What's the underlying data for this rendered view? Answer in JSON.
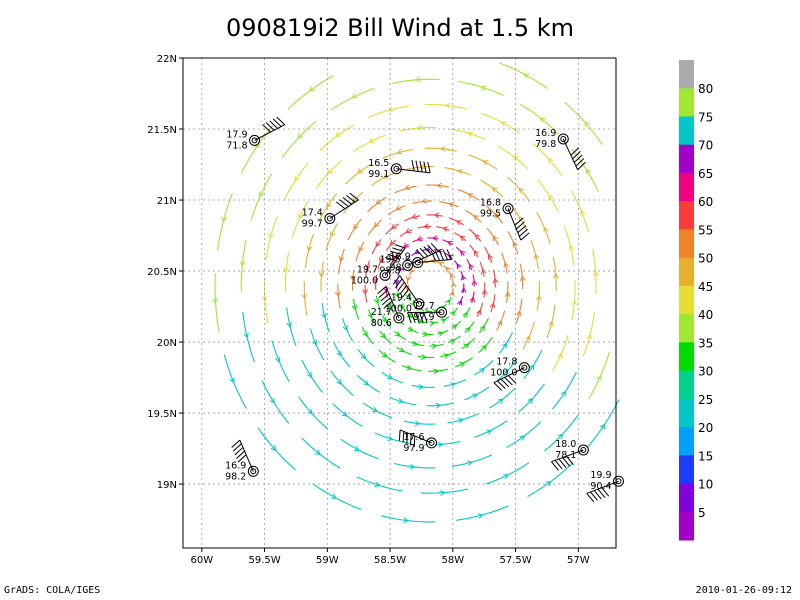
{
  "chart_data": {
    "type": "vector-field",
    "title": "090819i2 Bill Wind at 1.5 km",
    "x_ticks": [
      "60W",
      "59.5W",
      "59W",
      "58.5W",
      "58W",
      "57.5W",
      "57W"
    ],
    "y_ticks": [
      "22N",
      "21.5N",
      "21N",
      "20.5N",
      "20N",
      "19.5N",
      "19N"
    ],
    "xlim": [
      -60.15,
      -56.7
    ],
    "ylim": [
      18.55,
      22.0
    ],
    "grid": true,
    "colorbar": {
      "levels": [
        "5",
        "10",
        "15",
        "20",
        "25",
        "30",
        "35",
        "40",
        "45",
        "50",
        "55",
        "60",
        "65",
        "70",
        "75",
        "80"
      ],
      "colors": [
        "#a000c8",
        "#8200dc",
        "#1e3cff",
        "#00a0ff",
        "#00c8c8",
        "#00d28c",
        "#00dc00",
        "#a0e632",
        "#e6dc32",
        "#e6af2d",
        "#f08228",
        "#fa3c3c",
        "#f00082",
        "#a000c8",
        "#00c8c8",
        "#a0e632",
        "#aaaaaa"
      ]
    },
    "center": {
      "lon": -58.18,
      "lat": 20.52
    },
    "observations": [
      {
        "lon": -59.58,
        "lat": 21.42,
        "t": "17.9",
        "p": "71.8",
        "side": "left"
      },
      {
        "lon": -58.45,
        "lat": 21.22,
        "t": "16.5",
        "p": "99.1",
        "side": "left"
      },
      {
        "lon": -57.12,
        "lat": 21.43,
        "t": "16.9",
        "p": "79.8",
        "side": "left"
      },
      {
        "lon": -58.98,
        "lat": 20.87,
        "t": "17.4",
        "p": "99.7",
        "side": "left"
      },
      {
        "lon": -57.56,
        "lat": 20.94,
        "t": "16.8",
        "p": "99.5",
        "side": "left"
      },
      {
        "lon": -58.28,
        "lat": 20.56,
        "t": "18.9",
        "p": "98.0",
        "side": "left"
      },
      {
        "lon": -58.36,
        "lat": 20.54,
        "t": "19.5",
        "p": "98.8",
        "side": "left"
      },
      {
        "lon": -58.54,
        "lat": 20.47,
        "t": "19.7",
        "p": "100.0",
        "side": "left"
      },
      {
        "lon": -58.27,
        "lat": 20.27,
        "t": "19.4",
        "p": "100.0",
        "side": "left"
      },
      {
        "lon": -58.43,
        "lat": 20.17,
        "t": "21.7",
        "p": "80.6",
        "side": "left"
      },
      {
        "lon": -58.09,
        "lat": 20.21,
        "t": "17.7",
        "p": "97.9",
        "side": "left"
      },
      {
        "lon": -57.43,
        "lat": 19.82,
        "t": "17.8",
        "p": "100.0",
        "side": "left"
      },
      {
        "lon": -58.17,
        "lat": 19.29,
        "t": "17.6",
        "p": "97.9",
        "side": "left"
      },
      {
        "lon": -56.96,
        "lat": 19.24,
        "t": "18.0",
        "p": "78.1",
        "side": "left"
      },
      {
        "lon": -59.59,
        "lat": 19.09,
        "t": "16.9",
        "p": "98.2",
        "side": "left"
      },
      {
        "lon": -56.68,
        "lat": 19.02,
        "t": "19.9",
        "p": "90.4",
        "side": "left"
      }
    ]
  },
  "footer": {
    "left": "GrADS: COLA/IGES",
    "right": "2010-01-26-09:12"
  }
}
